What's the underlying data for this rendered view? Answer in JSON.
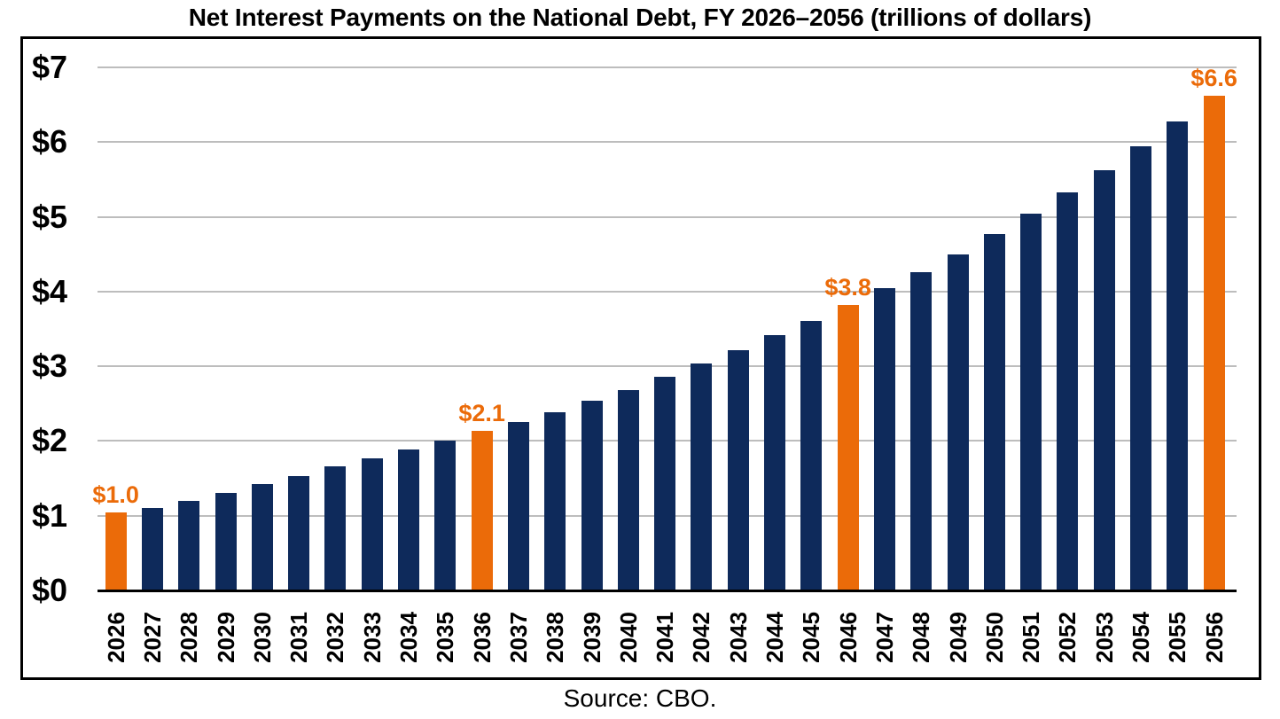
{
  "colors": {
    "bar": "#0E2A5B",
    "highlight": "#EB6B09",
    "gridline": "#BDBDBD",
    "axis": "#000000"
  },
  "chart_data": {
    "type": "bar",
    "title": "Net Interest Payments on the National Debt, FY 2026–2056 (trillions of dollars)",
    "source": "Source: CBO.",
    "xlabel": "",
    "ylabel": "trillions of dollars",
    "ylim": [
      0,
      7
    ],
    "grid": "horizontal",
    "legend": "none",
    "y_ticks": [
      "$0",
      "$1",
      "$2",
      "$3",
      "$4",
      "$5",
      "$6",
      "$7"
    ],
    "categories": [
      "2026",
      "2027",
      "2028",
      "2029",
      "2030",
      "2031",
      "2032",
      "2033",
      "2034",
      "2035",
      "2036",
      "2037",
      "2038",
      "2039",
      "2040",
      "2041",
      "2042",
      "2043",
      "2044",
      "2045",
      "2046",
      "2047",
      "2048",
      "2049",
      "2050",
      "2051",
      "2052",
      "2053",
      "2054",
      "2055",
      "2056"
    ],
    "values": [
      1.04,
      1.1,
      1.2,
      1.3,
      1.42,
      1.53,
      1.66,
      1.77,
      1.89,
      2.0,
      2.13,
      2.25,
      2.39,
      2.54,
      2.68,
      2.86,
      3.04,
      3.22,
      3.42,
      3.61,
      3.82,
      4.04,
      4.26,
      4.5,
      4.77,
      5.04,
      5.33,
      5.62,
      5.94,
      6.28,
      6.62
    ],
    "highlighted": [
      {
        "category": "2026",
        "label": "$1.0"
      },
      {
        "category": "2036",
        "label": "$2.1"
      },
      {
        "category": "2046",
        "label": "$3.8"
      },
      {
        "category": "2056",
        "label": "$6.6"
      }
    ]
  }
}
